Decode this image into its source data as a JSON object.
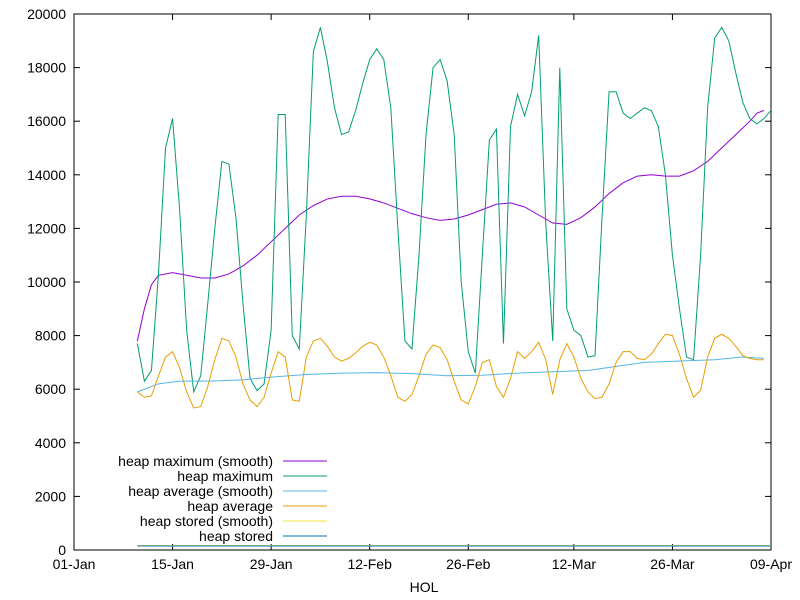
{
  "chart_data": {
    "type": "line",
    "xlabel": "HOL",
    "ylabel": "",
    "title": "",
    "x_ticks": [
      {
        "date": "2000-01-01",
        "label": "01-Jan"
      },
      {
        "date": "2000-01-15",
        "label": "15-Jan"
      },
      {
        "date": "2000-01-29",
        "label": "29-Jan"
      },
      {
        "date": "2000-02-12",
        "label": "12-Feb"
      },
      {
        "date": "2000-02-26",
        "label": "26-Feb"
      },
      {
        "date": "2000-03-12",
        "label": "12-Mar"
      },
      {
        "date": "2000-03-26",
        "label": "26-Mar"
      },
      {
        "date": "2000-04-09",
        "label": "09-Apr"
      }
    ],
    "xlim": [
      "2000-01-01",
      "2000-04-09"
    ],
    "ylim": [
      0,
      20000
    ],
    "y_ticks": [
      0,
      2000,
      4000,
      6000,
      8000,
      10000,
      12000,
      14000,
      16000,
      18000,
      20000
    ],
    "grid": false,
    "legend_position": "bottom-left",
    "series": [
      {
        "name": "heap maximum (smooth)",
        "color": "#9400d3",
        "points": [
          [
            "2000-01-10",
            7800
          ],
          [
            "2000-01-11",
            9000
          ],
          [
            "2000-01-12",
            9900
          ],
          [
            "2000-01-13",
            10250
          ],
          [
            "2000-01-15",
            10350
          ],
          [
            "2000-01-17",
            10250
          ],
          [
            "2000-01-19",
            10150
          ],
          [
            "2000-01-21",
            10150
          ],
          [
            "2000-01-23",
            10300
          ],
          [
            "2000-01-25",
            10600
          ],
          [
            "2000-01-27",
            11000
          ],
          [
            "2000-01-29",
            11500
          ],
          [
            "2000-01-31",
            12000
          ],
          [
            "2000-02-02",
            12500
          ],
          [
            "2000-02-04",
            12850
          ],
          [
            "2000-02-06",
            13100
          ],
          [
            "2000-02-08",
            13200
          ],
          [
            "2000-02-10",
            13200
          ],
          [
            "2000-02-12",
            13100
          ],
          [
            "2000-02-14",
            12950
          ],
          [
            "2000-02-16",
            12750
          ],
          [
            "2000-02-18",
            12550
          ],
          [
            "2000-02-20",
            12400
          ],
          [
            "2000-02-22",
            12300
          ],
          [
            "2000-02-24",
            12350
          ],
          [
            "2000-02-26",
            12500
          ],
          [
            "2000-02-28",
            12700
          ],
          [
            "2000-03-01",
            12900
          ],
          [
            "2000-03-03",
            12950
          ],
          [
            "2000-03-05",
            12800
          ],
          [
            "2000-03-07",
            12500
          ],
          [
            "2000-03-09",
            12200
          ],
          [
            "2000-03-11",
            12150
          ],
          [
            "2000-03-13",
            12400
          ],
          [
            "2000-03-15",
            12800
          ],
          [
            "2000-03-17",
            13300
          ],
          [
            "2000-03-19",
            13700
          ],
          [
            "2000-03-21",
            13950
          ],
          [
            "2000-03-23",
            14000
          ],
          [
            "2000-03-25",
            13950
          ],
          [
            "2000-03-27",
            13950
          ],
          [
            "2000-03-29",
            14150
          ],
          [
            "2000-03-31",
            14500
          ],
          [
            "2000-04-02",
            15000
          ],
          [
            "2000-04-04",
            15500
          ],
          [
            "2000-04-06",
            16000
          ],
          [
            "2000-04-07",
            16300
          ],
          [
            "2000-04-08",
            16400
          ]
        ]
      },
      {
        "name": "heap maximum",
        "color": "#009e73",
        "points": [
          [
            "2000-01-10",
            7700
          ],
          [
            "2000-01-11",
            6300
          ],
          [
            "2000-01-12",
            6700
          ],
          [
            "2000-01-13",
            10300
          ],
          [
            "2000-01-14",
            15000
          ],
          [
            "2000-01-15",
            16100
          ],
          [
            "2000-01-16",
            12700
          ],
          [
            "2000-01-17",
            8200
          ],
          [
            "2000-01-18",
            5900
          ],
          [
            "2000-01-19",
            6500
          ],
          [
            "2000-01-20",
            9200
          ],
          [
            "2000-01-21",
            12000
          ],
          [
            "2000-01-22",
            14500
          ],
          [
            "2000-01-23",
            14400
          ],
          [
            "2000-01-24",
            12400
          ],
          [
            "2000-01-25",
            9200
          ],
          [
            "2000-01-26",
            6400
          ],
          [
            "2000-01-27",
            5950
          ],
          [
            "2000-01-28",
            6200
          ],
          [
            "2000-01-29",
            8200
          ],
          [
            "2000-01-30",
            16250
          ],
          [
            "2000-01-31",
            16250
          ],
          [
            "2000-02-01",
            8000
          ],
          [
            "2000-02-02",
            7500
          ],
          [
            "2000-02-03",
            12500
          ],
          [
            "2000-02-04",
            18600
          ],
          [
            "2000-02-05",
            19500
          ],
          [
            "2000-02-06",
            18200
          ],
          [
            "2000-02-07",
            16500
          ],
          [
            "2000-02-08",
            15500
          ],
          [
            "2000-02-09",
            15600
          ],
          [
            "2000-02-10",
            16400
          ],
          [
            "2000-02-11",
            17400
          ],
          [
            "2000-02-12",
            18300
          ],
          [
            "2000-02-13",
            18700
          ],
          [
            "2000-02-14",
            18300
          ],
          [
            "2000-02-15",
            16500
          ],
          [
            "2000-02-16",
            12000
          ],
          [
            "2000-02-17",
            7800
          ],
          [
            "2000-02-18",
            7500
          ],
          [
            "2000-02-19",
            11000
          ],
          [
            "2000-02-20",
            15500
          ],
          [
            "2000-02-21",
            18000
          ],
          [
            "2000-02-22",
            18300
          ],
          [
            "2000-02-23",
            17500
          ],
          [
            "2000-02-24",
            15500
          ],
          [
            "2000-02-25",
            10000
          ],
          [
            "2000-02-26",
            7400
          ],
          [
            "2000-02-27",
            6600
          ],
          [
            "2000-02-28",
            11000
          ],
          [
            "2000-02-29",
            15300
          ],
          [
            "2000-03-01",
            15700
          ],
          [
            "2000-03-02",
            7700
          ],
          [
            "2000-03-03",
            15800
          ],
          [
            "2000-03-04",
            17000
          ],
          [
            "2000-03-05",
            16200
          ],
          [
            "2000-03-06",
            17100
          ],
          [
            "2000-03-07",
            19200
          ],
          [
            "2000-03-08",
            12200
          ],
          [
            "2000-03-09",
            7800
          ],
          [
            "2000-03-10",
            18000
          ],
          [
            "2000-03-11",
            9000
          ],
          [
            "2000-03-12",
            8200
          ],
          [
            "2000-03-13",
            8000
          ],
          [
            "2000-03-14",
            7200
          ],
          [
            "2000-03-15",
            7250
          ],
          [
            "2000-03-16",
            12400
          ],
          [
            "2000-03-17",
            17100
          ],
          [
            "2000-03-18",
            17100
          ],
          [
            "2000-03-19",
            16300
          ],
          [
            "2000-03-20",
            16100
          ],
          [
            "2000-03-21",
            16300
          ],
          [
            "2000-03-22",
            16500
          ],
          [
            "2000-03-23",
            16400
          ],
          [
            "2000-03-24",
            15800
          ],
          [
            "2000-03-25",
            14000
          ],
          [
            "2000-03-26",
            11000
          ],
          [
            "2000-03-27",
            9000
          ],
          [
            "2000-03-28",
            7200
          ],
          [
            "2000-03-29",
            7100
          ],
          [
            "2000-03-30",
            11000
          ],
          [
            "2000-03-31",
            16500
          ],
          [
            "2000-04-01",
            19100
          ],
          [
            "2000-04-02",
            19500
          ],
          [
            "2000-04-03",
            19000
          ],
          [
            "2000-04-04",
            17800
          ],
          [
            "2000-04-05",
            16700
          ],
          [
            "2000-04-06",
            16100
          ],
          [
            "2000-04-07",
            15900
          ],
          [
            "2000-04-08",
            16100
          ],
          [
            "2000-04-09",
            16400
          ]
        ]
      },
      {
        "name": "heap average (smooth)",
        "color": "#56b4e9",
        "points": [
          [
            "2000-01-10",
            5900
          ],
          [
            "2000-01-13",
            6200
          ],
          [
            "2000-01-16",
            6300
          ],
          [
            "2000-01-20",
            6300
          ],
          [
            "2000-01-25",
            6350
          ],
          [
            "2000-01-29",
            6450
          ],
          [
            "2000-02-03",
            6550
          ],
          [
            "2000-02-08",
            6600
          ],
          [
            "2000-02-13",
            6620
          ],
          [
            "2000-02-18",
            6580
          ],
          [
            "2000-02-23",
            6500
          ],
          [
            "2000-02-28",
            6520
          ],
          [
            "2000-03-04",
            6600
          ],
          [
            "2000-03-09",
            6650
          ],
          [
            "2000-03-14",
            6700
          ],
          [
            "2000-03-18",
            6850
          ],
          [
            "2000-03-22",
            7000
          ],
          [
            "2000-03-27",
            7050
          ],
          [
            "2000-04-01",
            7100
          ],
          [
            "2000-04-05",
            7200
          ],
          [
            "2000-04-08",
            7150
          ]
        ]
      },
      {
        "name": "heap average",
        "color": "#e69f00",
        "points": [
          [
            "2000-01-10",
            5900
          ],
          [
            "2000-01-11",
            5700
          ],
          [
            "2000-01-12",
            5750
          ],
          [
            "2000-01-13",
            6500
          ],
          [
            "2000-01-14",
            7200
          ],
          [
            "2000-01-15",
            7400
          ],
          [
            "2000-01-16",
            6800
          ],
          [
            "2000-01-17",
            5900
          ],
          [
            "2000-01-18",
            5300
          ],
          [
            "2000-01-19",
            5350
          ],
          [
            "2000-01-20",
            6100
          ],
          [
            "2000-01-21",
            7100
          ],
          [
            "2000-01-22",
            7900
          ],
          [
            "2000-01-23",
            7800
          ],
          [
            "2000-01-24",
            7200
          ],
          [
            "2000-01-25",
            6200
          ],
          [
            "2000-01-26",
            5600
          ],
          [
            "2000-01-27",
            5350
          ],
          [
            "2000-01-28",
            5700
          ],
          [
            "2000-01-29",
            6600
          ],
          [
            "2000-01-30",
            7400
          ],
          [
            "2000-01-31",
            7200
          ],
          [
            "2000-02-01",
            5600
          ],
          [
            "2000-02-02",
            5550
          ],
          [
            "2000-02-03",
            7200
          ],
          [
            "2000-02-04",
            7800
          ],
          [
            "2000-02-05",
            7900
          ],
          [
            "2000-02-06",
            7600
          ],
          [
            "2000-02-07",
            7200
          ],
          [
            "2000-02-08",
            7050
          ],
          [
            "2000-02-09",
            7150
          ],
          [
            "2000-02-10",
            7350
          ],
          [
            "2000-02-11",
            7600
          ],
          [
            "2000-02-12",
            7750
          ],
          [
            "2000-02-13",
            7650
          ],
          [
            "2000-02-14",
            7200
          ],
          [
            "2000-02-15",
            6500
          ],
          [
            "2000-02-16",
            5700
          ],
          [
            "2000-02-17",
            5550
          ],
          [
            "2000-02-18",
            5800
          ],
          [
            "2000-02-19",
            6500
          ],
          [
            "2000-02-20",
            7300
          ],
          [
            "2000-02-21",
            7650
          ],
          [
            "2000-02-22",
            7550
          ],
          [
            "2000-02-23",
            7100
          ],
          [
            "2000-02-24",
            6300
          ],
          [
            "2000-02-25",
            5600
          ],
          [
            "2000-02-26",
            5450
          ],
          [
            "2000-02-27",
            6100
          ],
          [
            "2000-02-28",
            7000
          ],
          [
            "2000-02-29",
            7100
          ],
          [
            "2000-03-01",
            6100
          ],
          [
            "2000-03-02",
            5700
          ],
          [
            "2000-03-03",
            6400
          ],
          [
            "2000-03-04",
            7400
          ],
          [
            "2000-03-05",
            7150
          ],
          [
            "2000-03-06",
            7400
          ],
          [
            "2000-03-07",
            7750
          ],
          [
            "2000-03-08",
            7100
          ],
          [
            "2000-03-09",
            5800
          ],
          [
            "2000-03-10",
            7100
          ],
          [
            "2000-03-11",
            7700
          ],
          [
            "2000-03-12",
            7200
          ],
          [
            "2000-03-13",
            6400
          ],
          [
            "2000-03-14",
            5900
          ],
          [
            "2000-03-15",
            5650
          ],
          [
            "2000-03-16",
            5700
          ],
          [
            "2000-03-17",
            6200
          ],
          [
            "2000-03-18",
            7000
          ],
          [
            "2000-03-19",
            7400
          ],
          [
            "2000-03-20",
            7400
          ],
          [
            "2000-03-21",
            7150
          ],
          [
            "2000-03-22",
            7100
          ],
          [
            "2000-03-23",
            7300
          ],
          [
            "2000-03-24",
            7700
          ],
          [
            "2000-03-25",
            8050
          ],
          [
            "2000-03-26",
            8000
          ],
          [
            "2000-03-27",
            7300
          ],
          [
            "2000-03-28",
            6400
          ],
          [
            "2000-03-29",
            5700
          ],
          [
            "2000-03-30",
            5950
          ],
          [
            "2000-03-31",
            7200
          ],
          [
            "2000-04-01",
            7900
          ],
          [
            "2000-04-02",
            8050
          ],
          [
            "2000-04-03",
            7900
          ],
          [
            "2000-04-04",
            7600
          ],
          [
            "2000-04-05",
            7250
          ],
          [
            "2000-04-06",
            7150
          ],
          [
            "2000-04-07",
            7100
          ],
          [
            "2000-04-08",
            7100
          ]
        ]
      },
      {
        "name": "heap stored (smooth)",
        "color": "#f0e442",
        "points": [
          [
            "2000-01-10",
            170
          ],
          [
            "2000-04-09",
            170
          ]
        ]
      },
      {
        "name": "heap stored",
        "color": "#0072b2",
        "points": [
          [
            "2000-01-10",
            150
          ],
          [
            "2000-04-09",
            150
          ]
        ]
      }
    ]
  }
}
